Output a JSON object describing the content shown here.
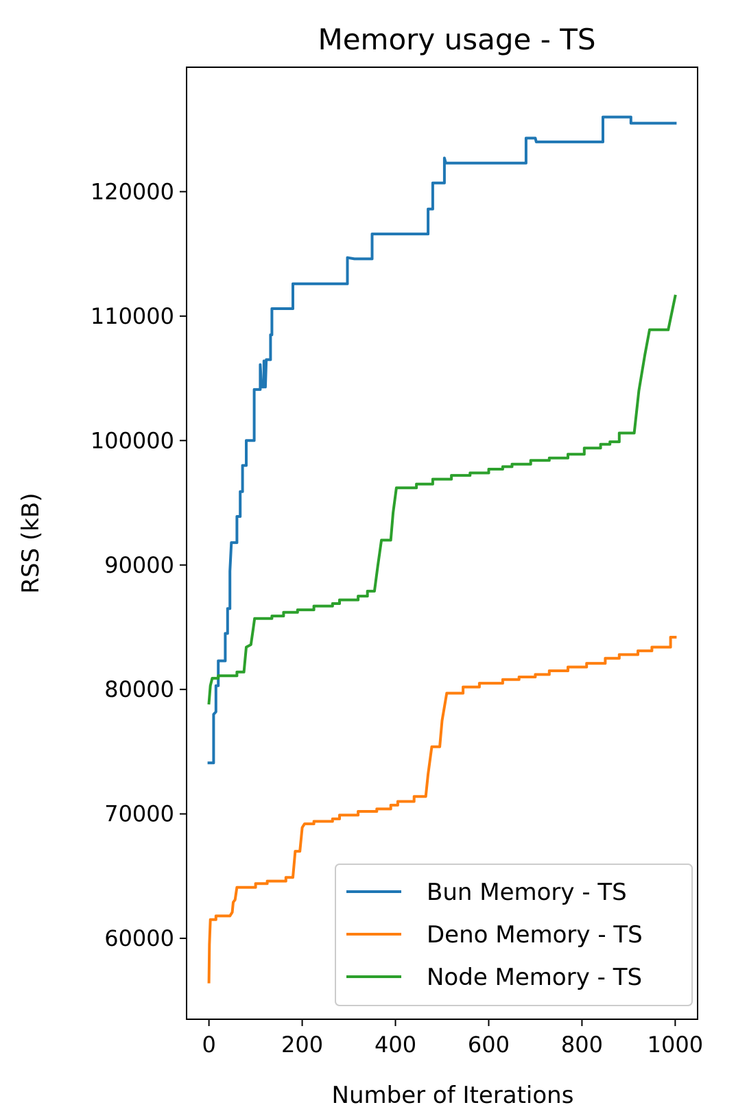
{
  "chart_data": {
    "type": "line",
    "title": "Memory usage - TS",
    "xlabel": "Number of Iterations",
    "ylabel": "RSS (kB)",
    "xlim": [
      -48,
      1048
    ],
    "ylim": [
      53500,
      130000
    ],
    "xticks": [
      0,
      200,
      400,
      600,
      800,
      1000
    ],
    "yticks": [
      60000,
      70000,
      80000,
      90000,
      100000,
      110000,
      120000
    ],
    "grid": false,
    "legend_position": "lower-right",
    "series": [
      {
        "name": "Bun Memory - TS",
        "color": "#1f77b4",
        "points": [
          [
            0,
            74100
          ],
          [
            10,
            74100
          ],
          [
            10,
            78000
          ],
          [
            15,
            78200
          ],
          [
            15,
            80300
          ],
          [
            20,
            80300
          ],
          [
            20,
            82300
          ],
          [
            35,
            82300
          ],
          [
            35,
            84500
          ],
          [
            40,
            84500
          ],
          [
            40,
            86500
          ],
          [
            45,
            86500
          ],
          [
            45,
            89500
          ],
          [
            48,
            91800
          ],
          [
            60,
            91800
          ],
          [
            60,
            93900
          ],
          [
            67,
            93900
          ],
          [
            67,
            95900
          ],
          [
            72,
            95900
          ],
          [
            72,
            98000
          ],
          [
            80,
            98000
          ],
          [
            80,
            100000
          ],
          [
            97,
            100000
          ],
          [
            97,
            104100
          ],
          [
            110,
            104100
          ],
          [
            110,
            106100
          ],
          [
            113,
            104300
          ],
          [
            118,
            104300
          ],
          [
            118,
            106400
          ],
          [
            121,
            104300
          ],
          [
            123,
            106500
          ],
          [
            132,
            106500
          ],
          [
            132,
            108500
          ],
          [
            135,
            108500
          ],
          [
            135,
            110600
          ],
          [
            180,
            110600
          ],
          [
            180,
            112600
          ],
          [
            297,
            112600
          ],
          [
            297,
            114700
          ],
          [
            312,
            114600
          ],
          [
            350,
            114600
          ],
          [
            350,
            116600
          ],
          [
            470,
            116600
          ],
          [
            470,
            118600
          ],
          [
            480,
            118600
          ],
          [
            480,
            120700
          ],
          [
            505,
            120700
          ],
          [
            505,
            122700
          ],
          [
            508,
            122300
          ],
          [
            680,
            122300
          ],
          [
            680,
            124300
          ],
          [
            700,
            124300
          ],
          [
            702,
            124000
          ],
          [
            845,
            124000
          ],
          [
            845,
            126000
          ],
          [
            905,
            126000
          ],
          [
            905,
            125500
          ],
          [
            1000,
            125500
          ]
        ]
      },
      {
        "name": "Deno Memory - TS",
        "color": "#ff7f0e",
        "points": [
          [
            0,
            56500
          ],
          [
            1,
            59500
          ],
          [
            3,
            61500
          ],
          [
            15,
            61500
          ],
          [
            15,
            61800
          ],
          [
            45,
            61800
          ],
          [
            50,
            62100
          ],
          [
            52,
            62900
          ],
          [
            56,
            63100
          ],
          [
            60,
            64100
          ],
          [
            100,
            64100
          ],
          [
            100,
            64400
          ],
          [
            125,
            64400
          ],
          [
            125,
            64600
          ],
          [
            165,
            64600
          ],
          [
            165,
            64900
          ],
          [
            180,
            64900
          ],
          [
            185,
            67000
          ],
          [
            195,
            67000
          ],
          [
            200,
            68900
          ],
          [
            205,
            69200
          ],
          [
            225,
            69200
          ],
          [
            225,
            69400
          ],
          [
            265,
            69400
          ],
          [
            265,
            69600
          ],
          [
            280,
            69600
          ],
          [
            280,
            69900
          ],
          [
            320,
            69900
          ],
          [
            320,
            70200
          ],
          [
            360,
            70200
          ],
          [
            360,
            70400
          ],
          [
            390,
            70400
          ],
          [
            390,
            70700
          ],
          [
            405,
            70700
          ],
          [
            405,
            71000
          ],
          [
            440,
            71000
          ],
          [
            440,
            71400
          ],
          [
            465,
            71400
          ],
          [
            470,
            73200
          ],
          [
            478,
            75400
          ],
          [
            495,
            75400
          ],
          [
            500,
            77500
          ],
          [
            510,
            79700
          ],
          [
            545,
            79700
          ],
          [
            545,
            80200
          ],
          [
            580,
            80200
          ],
          [
            580,
            80500
          ],
          [
            630,
            80500
          ],
          [
            630,
            80800
          ],
          [
            665,
            80800
          ],
          [
            665,
            81000
          ],
          [
            700,
            81000
          ],
          [
            700,
            81200
          ],
          [
            730,
            81200
          ],
          [
            730,
            81500
          ],
          [
            770,
            81500
          ],
          [
            770,
            81800
          ],
          [
            810,
            81800
          ],
          [
            810,
            82100
          ],
          [
            850,
            82100
          ],
          [
            850,
            82500
          ],
          [
            880,
            82500
          ],
          [
            880,
            82800
          ],
          [
            920,
            82800
          ],
          [
            920,
            83100
          ],
          [
            950,
            83100
          ],
          [
            950,
            83400
          ],
          [
            990,
            83400
          ],
          [
            990,
            84200
          ],
          [
            1000,
            84200
          ]
        ]
      },
      {
        "name": "Node Memory - TS",
        "color": "#2ca02c",
        "points": [
          [
            0,
            78900
          ],
          [
            3,
            80300
          ],
          [
            7,
            80900
          ],
          [
            20,
            80900
          ],
          [
            20,
            81100
          ],
          [
            60,
            81100
          ],
          [
            60,
            81400
          ],
          [
            75,
            81400
          ],
          [
            80,
            83400
          ],
          [
            90,
            83600
          ],
          [
            95,
            84900
          ],
          [
            98,
            85700
          ],
          [
            135,
            85700
          ],
          [
            135,
            85900
          ],
          [
            160,
            85900
          ],
          [
            160,
            86200
          ],
          [
            190,
            86200
          ],
          [
            190,
            86400
          ],
          [
            225,
            86400
          ],
          [
            225,
            86700
          ],
          [
            265,
            86700
          ],
          [
            265,
            86900
          ],
          [
            280,
            86900
          ],
          [
            280,
            87200
          ],
          [
            320,
            87200
          ],
          [
            320,
            87500
          ],
          [
            340,
            87500
          ],
          [
            340,
            87900
          ],
          [
            355,
            87900
          ],
          [
            362,
            89900
          ],
          [
            370,
            92000
          ],
          [
            390,
            92000
          ],
          [
            395,
            94200
          ],
          [
            402,
            96200
          ],
          [
            445,
            96200
          ],
          [
            445,
            96500
          ],
          [
            480,
            96500
          ],
          [
            480,
            96900
          ],
          [
            520,
            96900
          ],
          [
            520,
            97200
          ],
          [
            560,
            97200
          ],
          [
            560,
            97400
          ],
          [
            600,
            97400
          ],
          [
            600,
            97700
          ],
          [
            630,
            97700
          ],
          [
            630,
            97900
          ],
          [
            650,
            97900
          ],
          [
            650,
            98100
          ],
          [
            690,
            98100
          ],
          [
            690,
            98400
          ],
          [
            730,
            98400
          ],
          [
            730,
            98600
          ],
          [
            770,
            98600
          ],
          [
            770,
            98900
          ],
          [
            805,
            98900
          ],
          [
            805,
            99400
          ],
          [
            840,
            99400
          ],
          [
            840,
            99700
          ],
          [
            860,
            99700
          ],
          [
            860,
            99900
          ],
          [
            880,
            99900
          ],
          [
            880,
            100600
          ],
          [
            912,
            100600
          ],
          [
            922,
            104000
          ],
          [
            935,
            106900
          ],
          [
            945,
            108900
          ],
          [
            985,
            108900
          ],
          [
            1000,
            111600
          ]
        ]
      }
    ]
  }
}
